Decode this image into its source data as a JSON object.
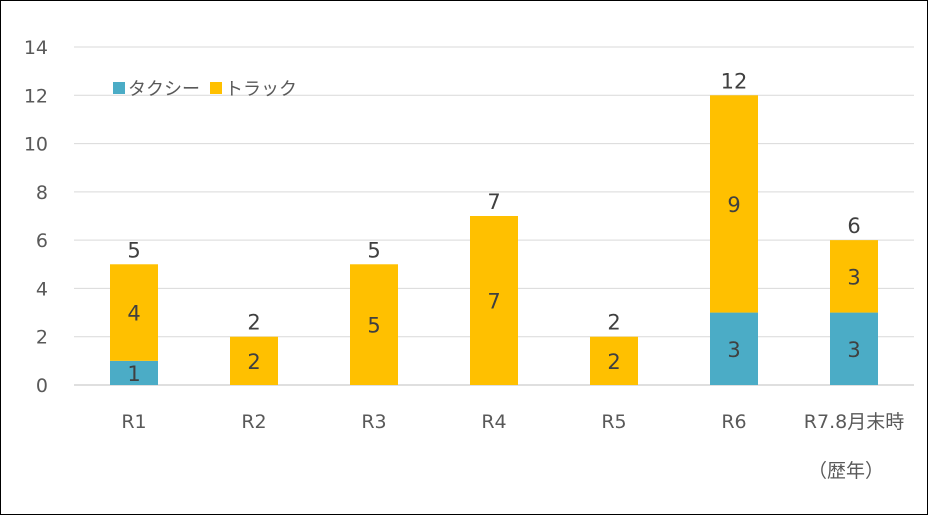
{
  "chart_data": {
    "type": "bar",
    "stacked": true,
    "categories": [
      "R1",
      "R2",
      "R3",
      "R4",
      "R5",
      "R6",
      "R7.8月末時"
    ],
    "category_note": "（歴年）",
    "series": [
      {
        "name": "タクシー",
        "values": [
          1,
          0,
          0,
          0,
          0,
          3,
          3
        ],
        "color": "#4BACC6"
      },
      {
        "name": "トラック",
        "values": [
          4,
          2,
          5,
          7,
          2,
          9,
          3
        ],
        "color": "#FFC000"
      }
    ],
    "totals": [
      5,
      2,
      5,
      7,
      2,
      12,
      6
    ],
    "ylim": [
      0,
      14
    ],
    "yticks": [
      0,
      2,
      4,
      6,
      8,
      10,
      12,
      14
    ],
    "grid": true,
    "legend_position": "top-left"
  }
}
